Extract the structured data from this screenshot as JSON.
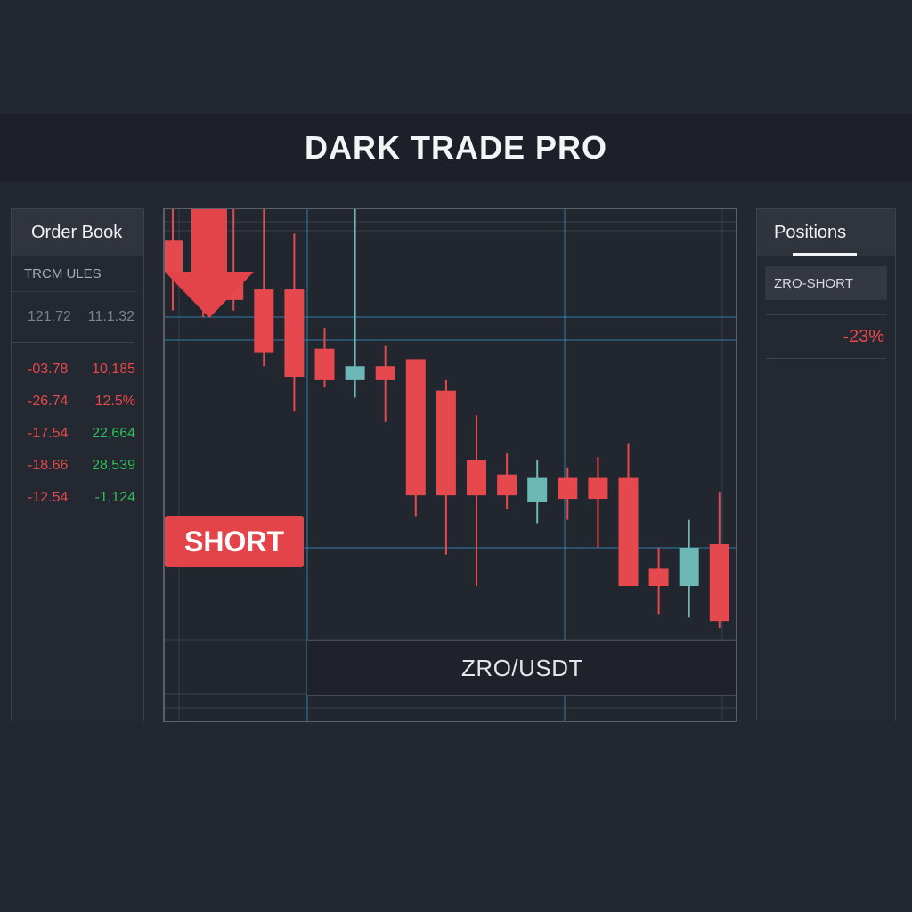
{
  "app": {
    "title": "DARK TRADE PRO"
  },
  "order_book": {
    "title": "Order Book",
    "subheader": "TRCM ULES",
    "reference_row": {
      "c1": "121.72",
      "c2": "11.1.32"
    },
    "rows": [
      {
        "c1": "-03.78",
        "c2": "10,185",
        "c1_color": "red",
        "c2_color": "red"
      },
      {
        "c1": "-26.74",
        "c2": "12.5%",
        "c1_color": "red",
        "c2_color": "red"
      },
      {
        "c1": "-17.54",
        "c2": "22,664",
        "c1_color": "red",
        "c2_color": "green"
      },
      {
        "c1": "-18.66",
        "c2": "28,539",
        "c1_color": "red",
        "c2_color": "green"
      },
      {
        "c1": "-12.54",
        "c2": "-1,124",
        "c1_color": "red",
        "c2_color": "green"
      }
    ]
  },
  "chart": {
    "pair": "ZRO/USDT",
    "action_label": "SHORT",
    "colors": {
      "down": "#e5484d",
      "up": "#6bb8b7",
      "grid_blue": "#2f87b8",
      "grid_gray": "#4b505b"
    },
    "candles": [
      {
        "o": 100,
        "h": 109,
        "l": 80,
        "c": 91,
        "dir": "down"
      },
      {
        "o": 96,
        "h": 109,
        "l": 78,
        "c": 87,
        "dir": "down"
      },
      {
        "o": 90,
        "h": 109,
        "l": 80,
        "c": 83,
        "dir": "down"
      },
      {
        "o": 86,
        "h": 109,
        "l": 64,
        "c": 68,
        "dir": "down"
      },
      {
        "o": 86,
        "h": 102,
        "l": 51,
        "c": 61,
        "dir": "down"
      },
      {
        "o": 69,
        "h": 75,
        "l": 58,
        "c": 60,
        "dir": "down"
      },
      {
        "o": 64,
        "h": 109,
        "l": 55,
        "c": 60,
        "dir": "up"
      },
      {
        "o": 64,
        "h": 70,
        "l": 48,
        "c": 60,
        "dir": "down"
      },
      {
        "o": 66,
        "h": 66,
        "l": 21,
        "c": 27,
        "dir": "down"
      },
      {
        "o": 57,
        "h": 60,
        "l": 10,
        "c": 27,
        "dir": "down"
      },
      {
        "o": 37,
        "h": 50,
        "l": 1,
        "c": 27,
        "dir": "down"
      },
      {
        "o": 33,
        "h": 39,
        "l": 23,
        "c": 27,
        "dir": "down"
      },
      {
        "o": 25,
        "h": 37,
        "l": 19,
        "c": 32,
        "dir": "up"
      },
      {
        "o": 32,
        "h": 35,
        "l": 20,
        "c": 26,
        "dir": "down"
      },
      {
        "o": 32,
        "h": 38,
        "l": 12,
        "c": 26,
        "dir": "down"
      },
      {
        "o": 32,
        "h": 42,
        "l": 1,
        "c": 1,
        "dir": "down"
      },
      {
        "o": 6,
        "h": 12,
        "l": -7,
        "c": 1,
        "dir": "down"
      },
      {
        "o": 1,
        "h": 20,
        "l": -8,
        "c": 12,
        "dir": "up"
      },
      {
        "o": 13,
        "h": 28,
        "l": -11,
        "c": -9,
        "dir": "down"
      }
    ]
  },
  "positions": {
    "title": "Positions",
    "items": [
      {
        "label": "ZRO-SHORT",
        "pnl": "-23%"
      }
    ]
  }
}
